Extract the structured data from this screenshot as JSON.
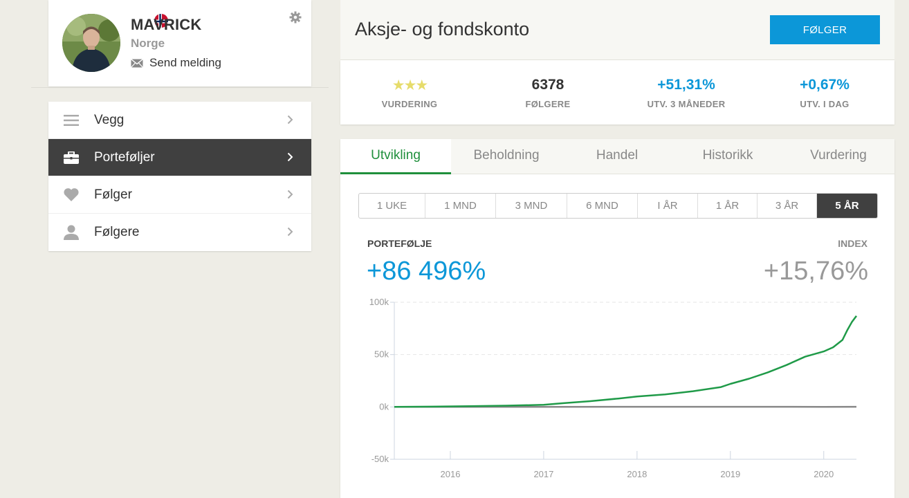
{
  "profile": {
    "username": "MAVRICK",
    "country": "Norge",
    "send_message": "Send melding"
  },
  "nav": {
    "items": [
      {
        "label": "Vegg",
        "icon": "menu-icon"
      },
      {
        "label": "Porteføljer",
        "icon": "briefcase-icon",
        "active": true
      },
      {
        "label": "Følger",
        "icon": "heart-icon"
      },
      {
        "label": "Følgere",
        "icon": "person-icon"
      }
    ]
  },
  "header": {
    "title": "Aksje- og fondskonto",
    "follow_label": "FØLGER"
  },
  "stats": {
    "rating_label": "VURDERING",
    "rating_stars": 3,
    "followers_value": "6378",
    "followers_label": "FØLGERE",
    "change_3m_value": "+51,31%",
    "change_3m_label": "UTV. 3 MÅNEDER",
    "change_day_value": "+0,67%",
    "change_day_label": "UTV. I DAG"
  },
  "tabs": [
    "Utvikling",
    "Beholdning",
    "Handel",
    "Historikk",
    "Vurdering"
  ],
  "periods": [
    "1 UKE",
    "1 MND",
    "3 MND",
    "6 MND",
    "I ÅR",
    "1 ÅR",
    "3 ÅR",
    "5 ÅR"
  ],
  "active_period": "5 ÅR",
  "summary": {
    "portfolio_label": "PORTEFØLJE",
    "portfolio_value": "+86 496%",
    "index_label": "INDEX",
    "index_value": "+15,76%"
  },
  "colors": {
    "accent": "#0c97d8",
    "portfolio_line": "#1f9a48",
    "index_line": "#888888",
    "active_tab": "#1f8f3c"
  },
  "chart_data": {
    "type": "line",
    "x_ticks": [
      "2016",
      "2017",
      "2018",
      "2019",
      "2020"
    ],
    "y_ticks": [
      "100k",
      "50k",
      "0k",
      "-50k"
    ],
    "ylim": [
      -50000,
      100000
    ],
    "xlim": [
      2015.4,
      2020.35
    ],
    "grid": true,
    "series": [
      {
        "name": "PORTEFØLJE",
        "x": [
          2015.4,
          2015.8,
          2016.2,
          2016.6,
          2017.0,
          2017.2,
          2017.5,
          2017.8,
          2018.0,
          2018.3,
          2018.6,
          2018.9,
          2019.0,
          2019.2,
          2019.4,
          2019.6,
          2019.8,
          2020.0,
          2020.1,
          2020.2,
          2020.25,
          2020.3,
          2020.35
        ],
        "values": [
          0,
          300,
          700,
          1200,
          2000,
          3500,
          5500,
          8000,
          10000,
          12000,
          15000,
          19000,
          22000,
          27000,
          33000,
          40000,
          48000,
          53000,
          57000,
          64000,
          73000,
          81000,
          87000
        ]
      },
      {
        "name": "INDEX",
        "x": [
          2015.4,
          2016.0,
          2017.0,
          2018.0,
          2019.0,
          2020.0,
          2020.35
        ],
        "values": [
          0,
          50,
          100,
          150,
          150,
          120,
          160
        ]
      }
    ]
  }
}
